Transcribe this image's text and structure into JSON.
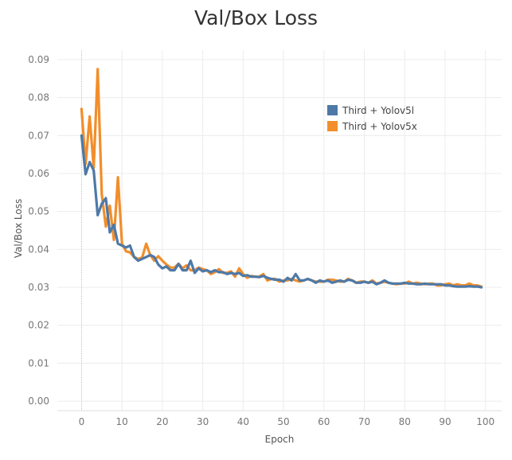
{
  "colors": {
    "series_blue": "#4e79a7",
    "series_orange": "#f28e2b",
    "grid": "#ececec",
    "tick_text": "#777777",
    "title": "#333333"
  },
  "chart_data": {
    "type": "line",
    "title": "Val/Box Loss",
    "xlabel": "Epoch",
    "ylabel": "Val/Box Loss",
    "xlim": [
      -6,
      104
    ],
    "ylim": [
      -0.0025,
      0.0925
    ],
    "x_ticks": [
      0,
      10,
      20,
      30,
      40,
      50,
      60,
      70,
      80,
      90,
      100
    ],
    "y_ticks": [
      0.0,
      0.01,
      0.02,
      0.03,
      0.04,
      0.05,
      0.06,
      0.07,
      0.08,
      0.09
    ],
    "y_tick_labels": [
      "0.00",
      "0.01",
      "0.02",
      "0.03",
      "0.04",
      "0.05",
      "0.06",
      "0.07",
      "0.08",
      "0.09"
    ],
    "grid": true,
    "legend_position": "top-right",
    "series": [
      {
        "name": "Third + Yolov5l",
        "color": "#4e79a7",
        "x": [
          0,
          1,
          2,
          3,
          4,
          5,
          6,
          7,
          8,
          9,
          10,
          11,
          12,
          13,
          14,
          15,
          16,
          17,
          18,
          19,
          20,
          21,
          22,
          23,
          24,
          25,
          26,
          27,
          28,
          29,
          30,
          31,
          32,
          33,
          34,
          35,
          36,
          37,
          38,
          39,
          40,
          41,
          42,
          43,
          44,
          45,
          46,
          47,
          48,
          49,
          50,
          51,
          52,
          53,
          54,
          55,
          56,
          57,
          58,
          59,
          60,
          61,
          62,
          63,
          64,
          65,
          66,
          67,
          68,
          69,
          70,
          71,
          72,
          73,
          74,
          75,
          76,
          77,
          78,
          79,
          80,
          81,
          82,
          83,
          84,
          85,
          86,
          87,
          88,
          89,
          90,
          91,
          92,
          93,
          94,
          95,
          96,
          97,
          98,
          99
        ],
        "y": [
          0.07,
          0.0598,
          0.063,
          0.0608,
          0.049,
          0.052,
          0.0535,
          0.0445,
          0.0465,
          0.0415,
          0.041,
          0.0405,
          0.041,
          0.038,
          0.037,
          0.0375,
          0.038,
          0.0385,
          0.038,
          0.036,
          0.035,
          0.0355,
          0.0345,
          0.0345,
          0.0362,
          0.0345,
          0.0345,
          0.037,
          0.0338,
          0.035,
          0.0342,
          0.0345,
          0.034,
          0.0345,
          0.034,
          0.034,
          0.0335,
          0.0338,
          0.0335,
          0.0338,
          0.033,
          0.0332,
          0.0328,
          0.0328,
          0.0327,
          0.033,
          0.0325,
          0.0322,
          0.032,
          0.032,
          0.0315,
          0.0325,
          0.0318,
          0.0335,
          0.0318,
          0.0318,
          0.0322,
          0.0318,
          0.0312,
          0.0318,
          0.0315,
          0.0318,
          0.0312,
          0.0315,
          0.0318,
          0.0315,
          0.032,
          0.0318,
          0.0312,
          0.0312,
          0.0315,
          0.0312,
          0.0315,
          0.0308,
          0.0312,
          0.0318,
          0.0312,
          0.031,
          0.031,
          0.031,
          0.0312,
          0.031,
          0.031,
          0.0308,
          0.0308,
          0.031,
          0.0308,
          0.0308,
          0.0308,
          0.0308,
          0.0305,
          0.0305,
          0.0303,
          0.0302,
          0.0302,
          0.0302,
          0.0303,
          0.0302,
          0.0302,
          0.03
        ]
      },
      {
        "name": "Third + Yolov5x",
        "color": "#f28e2b",
        "x": [
          0,
          1,
          2,
          3,
          4,
          5,
          6,
          7,
          8,
          9,
          10,
          11,
          12,
          13,
          14,
          15,
          16,
          17,
          18,
          19,
          20,
          21,
          22,
          23,
          24,
          25,
          26,
          27,
          28,
          29,
          30,
          31,
          32,
          33,
          34,
          35,
          36,
          37,
          38,
          39,
          40,
          41,
          42,
          43,
          44,
          45,
          46,
          47,
          48,
          49,
          50,
          51,
          52,
          53,
          54,
          55,
          56,
          57,
          58,
          59,
          60,
          61,
          62,
          63,
          64,
          65,
          66,
          67,
          68,
          69,
          70,
          71,
          72,
          73,
          74,
          75,
          76,
          77,
          78,
          79,
          80,
          81,
          82,
          83,
          84,
          85,
          86,
          87,
          88,
          89,
          90,
          91,
          92,
          93,
          94,
          95,
          96,
          97,
          98,
          99
        ],
        "y": [
          0.077,
          0.0625,
          0.075,
          0.0615,
          0.0875,
          0.0545,
          0.046,
          0.0515,
          0.0425,
          0.059,
          0.0415,
          0.0395,
          0.0392,
          0.038,
          0.0375,
          0.0378,
          0.0415,
          0.0385,
          0.037,
          0.0382,
          0.037,
          0.036,
          0.0352,
          0.0352,
          0.0362,
          0.035,
          0.0358,
          0.0345,
          0.0345,
          0.0352,
          0.0348,
          0.0345,
          0.0335,
          0.034,
          0.0348,
          0.0338,
          0.0338,
          0.0342,
          0.0328,
          0.035,
          0.0335,
          0.0325,
          0.033,
          0.0328,
          0.0328,
          0.0335,
          0.0318,
          0.0322,
          0.0322,
          0.0315,
          0.0318,
          0.0318,
          0.0322,
          0.0318,
          0.0315,
          0.0318,
          0.0322,
          0.0318,
          0.0315,
          0.0315,
          0.0315,
          0.032,
          0.032,
          0.0318,
          0.0315,
          0.0315,
          0.0322,
          0.0318,
          0.0312,
          0.0315,
          0.0315,
          0.0312,
          0.0318,
          0.031,
          0.0312,
          0.0315,
          0.0312,
          0.031,
          0.0308,
          0.031,
          0.031,
          0.0315,
          0.031,
          0.0312,
          0.031,
          0.0308,
          0.031,
          0.031,
          0.0305,
          0.0305,
          0.0308,
          0.031,
          0.0305,
          0.0308,
          0.0305,
          0.0305,
          0.031,
          0.0305,
          0.0305,
          0.0302
        ]
      }
    ]
  }
}
